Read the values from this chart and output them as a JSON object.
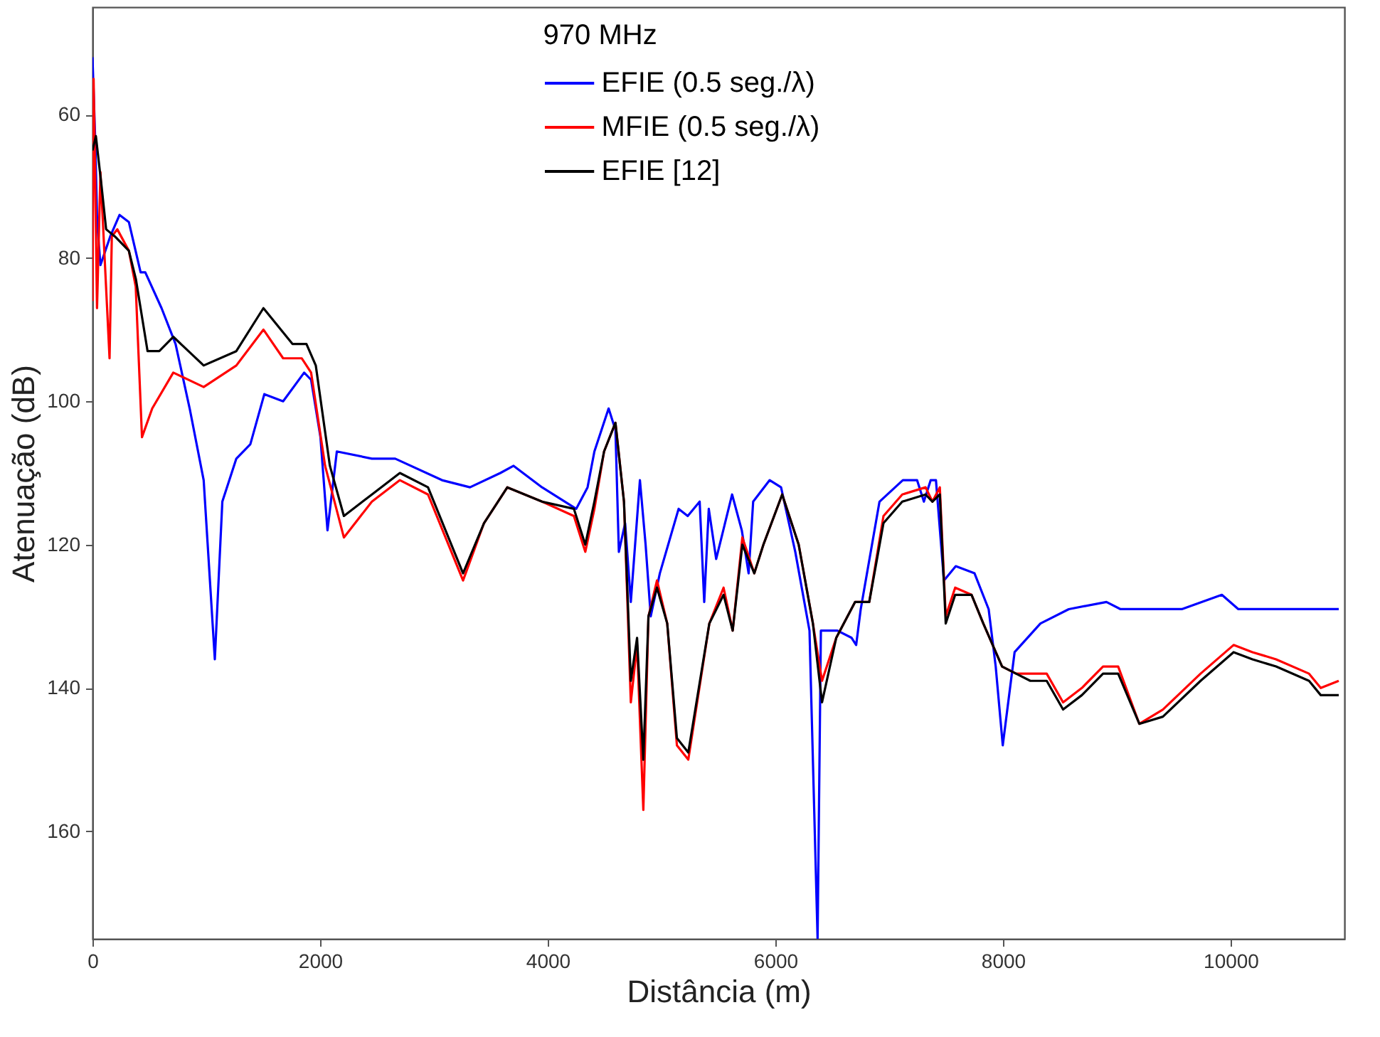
{
  "chart_data": {
    "type": "line",
    "xlabel": "Distância (m)",
    "ylabel": "Atenuação (dB)",
    "legend_title": "970 MHz",
    "legend": "top",
    "grid": false,
    "marker": "none",
    "line_style": "solid",
    "xlim": [
      0,
      11000
    ],
    "xticks": [
      0,
      2000,
      4000,
      6000,
      8000,
      10000
    ],
    "ylim": [
      175,
      45
    ],
    "yticks": [
      60,
      80,
      100,
      120,
      140,
      160
    ],
    "series": [
      {
        "name": "EFIE (0.5 seg./λ)",
        "color": "#0000ff",
        "x": [
          0,
          25,
          41,
          70,
          156,
          238,
          320,
          423,
          464,
          607,
          730,
          854,
          977,
          1075,
          1141,
          1264,
          1387,
          1510,
          1675,
          1860,
          1921,
          2003,
          2065,
          2147,
          2455,
          2660,
          3071,
          3317,
          3584,
          3700,
          3950,
          4250,
          4350,
          4410,
          4535,
          4595,
          4625,
          4680,
          4730,
          4810,
          4860,
          4905,
          4985,
          5150,
          5230,
          5335,
          5375,
          5415,
          5480,
          5620,
          5705,
          5765,
          5805,
          5950,
          6050,
          6175,
          6300,
          6371,
          6400,
          6545,
          6670,
          6710,
          6750,
          6915,
          7120,
          7245,
          7305,
          7365,
          7411,
          7481,
          7585,
          7750,
          7874,
          7936,
          7998,
          8102,
          8329,
          8578,
          8909,
          9033,
          9571,
          9923,
          10068,
          10648,
          10950
        ],
        "values": [
          52,
          64,
          75,
          81,
          77,
          74,
          75,
          82,
          82,
          87,
          92,
          101,
          111,
          136,
          114,
          108,
          106,
          99,
          100,
          96,
          97,
          105,
          118,
          107,
          108,
          108,
          111,
          112,
          110,
          109,
          112,
          115,
          112,
          107,
          101,
          104,
          121,
          117,
          128,
          111,
          120,
          130,
          124,
          115,
          116,
          114,
          128,
          115,
          122,
          113,
          118,
          124,
          114,
          111,
          112,
          121,
          132,
          175,
          132,
          132,
          133,
          134,
          129,
          114,
          111,
          111,
          114,
          111,
          111,
          125,
          123,
          124,
          129,
          137,
          148,
          135,
          131,
          129,
          128,
          129,
          129,
          127,
          129,
          129,
          129
        ]
      },
      {
        "name": "MFIE (0.5 seg./λ)",
        "color": "#ff0000",
        "x": [
          0,
          10,
          25,
          40,
          70,
          150,
          170,
          218,
          320,
          380,
          435,
          525,
          710,
          977,
          1264,
          1502,
          1675,
          1839,
          1921,
          2044,
          2209,
          2455,
          2701,
          2948,
          3256,
          3440,
          3645,
          3950,
          4230,
          4330,
          4410,
          4495,
          4595,
          4670,
          4730,
          4785,
          4840,
          4885,
          4960,
          5050,
          5135,
          5235,
          5420,
          5545,
          5625,
          5710,
          5815,
          5895,
          6060,
          6205,
          6330,
          6410,
          6535,
          6700,
          6825,
          6950,
          7115,
          7320,
          7380,
          7445,
          7497,
          7580,
          7724,
          7827,
          7992,
          8115,
          8240,
          8384,
          8528,
          8693,
          8879,
          9012,
          9198,
          9405,
          9736,
          10026,
          10192,
          10399,
          10689,
          10792,
          10950
        ],
        "values": [
          86,
          55,
          70,
          87,
          68,
          94,
          77,
          76,
          79,
          84,
          105,
          101,
          96,
          98,
          95,
          90,
          94,
          94,
          96,
          109,
          119,
          114,
          111,
          113,
          125,
          117,
          112,
          114,
          116,
          121,
          115,
          107,
          103,
          114,
          142,
          134,
          157,
          130,
          125,
          131,
          148,
          150,
          131,
          126,
          132,
          119,
          124,
          120,
          113,
          120,
          131,
          139,
          133,
          128,
          128,
          116,
          113,
          112,
          114,
          112,
          130,
          126,
          127,
          131,
          137,
          138,
          138,
          138,
          142,
          140,
          137,
          137,
          145,
          143,
          138,
          134,
          135,
          136,
          138,
          140,
          139
        ]
      },
      {
        "name": "EFIE [12]",
        "color": "#000000",
        "x": [
          0,
          30,
          80,
          120,
          197,
          320,
          382,
          484,
          587,
          710,
          977,
          1264,
          1502,
          1757,
          1880,
          1962,
          2086,
          2209,
          2455,
          2701,
          2948,
          3256,
          3440,
          3645,
          3950,
          4230,
          4330,
          4410,
          4495,
          4595,
          4670,
          4730,
          4785,
          4840,
          4885,
          4960,
          5050,
          5135,
          5235,
          5420,
          5545,
          5625,
          5710,
          5815,
          5895,
          6060,
          6205,
          6330,
          6410,
          6535,
          6700,
          6825,
          6950,
          7115,
          7320,
          7380,
          7445,
          7497,
          7580,
          7724,
          7827,
          7992,
          8115,
          8240,
          8384,
          8528,
          8693,
          8879,
          9012,
          9198,
          9405,
          9736,
          10026,
          10192,
          10399,
          10689,
          10792,
          10950
        ],
        "values": [
          65,
          63,
          70,
          76,
          77,
          79,
          83,
          93,
          93,
          91,
          95,
          93,
          87,
          92,
          92,
          95,
          109,
          116,
          113,
          110,
          112,
          124,
          117,
          112,
          114,
          115,
          120,
          114,
          107,
          103,
          114,
          139,
          133,
          150,
          130,
          126,
          131,
          147,
          149,
          131,
          127,
          132,
          120,
          124,
          120,
          113,
          120,
          131,
          142,
          133,
          128,
          128,
          117,
          114,
          113,
          114,
          113,
          131,
          127,
          127,
          131,
          137,
          138,
          139,
          139,
          143,
          141,
          138,
          138,
          145,
          144,
          139,
          135,
          136,
          137,
          139,
          141,
          141
        ]
      }
    ]
  }
}
